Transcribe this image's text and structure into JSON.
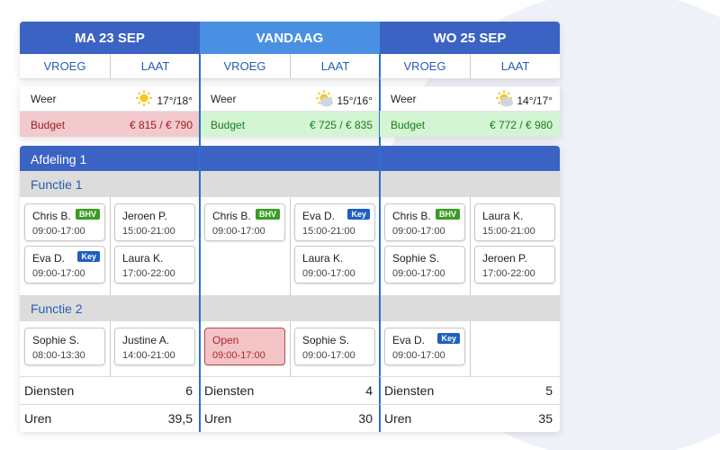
{
  "department": "Afdeling 1",
  "functions": [
    "Functie 1",
    "Functie 2"
  ],
  "weather_label": "Weer",
  "budget_label": "Budget",
  "services_label": "Diensten",
  "hours_label": "Uren",
  "days": [
    {
      "title": "MA 23 SEP",
      "today": false,
      "weather_icon": "sun",
      "temperature": "17°/18°",
      "budget": "€ 815 / € 790",
      "budget_status": "over",
      "services": 6,
      "hours": "39,5",
      "shifts": [
        {
          "label": "VROEG",
          "functions": [
            [
              {
                "name": "Chris B.",
                "time": "09:00-17:00",
                "badge": "BHV"
              },
              {
                "name": "Eva D.",
                "time": "09:00-17:00",
                "badge": "Key"
              }
            ],
            [
              {
                "name": "Sophie S.",
                "time": "08:00-13:30"
              }
            ]
          ]
        },
        {
          "label": "LAAT",
          "functions": [
            [
              {
                "name": "Jeroen P.",
                "time": "15:00-21:00"
              },
              {
                "name": "Laura K.",
                "time": "17:00-22:00"
              }
            ],
            [
              {
                "name": "Justine A.",
                "time": "14:00-21:00"
              }
            ]
          ]
        }
      ]
    },
    {
      "title": "VANDAAG",
      "today": true,
      "weather_icon": "partly-cloudy",
      "temperature": "15°/16°",
      "budget": "€ 725 / € 835",
      "budget_status": "under",
      "services": 4,
      "hours": "30",
      "shifts": [
        {
          "label": "VROEG",
          "functions": [
            [
              {
                "name": "Chris B.",
                "time": "09:00-17:00",
                "badge": "BHV"
              }
            ],
            [
              {
                "name": "Open",
                "time": "09:00-17:00",
                "open": true
              }
            ]
          ]
        },
        {
          "label": "LAAT",
          "functions": [
            [
              {
                "name": "Eva D.",
                "time": "15:00-21:00",
                "badge": "Key"
              },
              {
                "name": "Laura K.",
                "time": "09:00-17:00"
              }
            ],
            [
              {
                "name": "Sophie S.",
                "time": "09:00-17:00"
              }
            ]
          ]
        }
      ]
    },
    {
      "title": "WO 25 SEP",
      "today": false,
      "weather_icon": "partly-cloudy",
      "temperature": "14°/17°",
      "budget": "€ 772 / € 980",
      "budget_status": "under",
      "services": 5,
      "hours": "35",
      "shifts": [
        {
          "label": "VROEG",
          "functions": [
            [
              {
                "name": "Chris B.",
                "time": "09:00-17:00",
                "badge": "BHV"
              },
              {
                "name": "Sophie S.",
                "time": "09:00-17:00"
              }
            ],
            [
              {
                "name": "Eva D.",
                "time": "09:00-17:00",
                "badge": "Key"
              }
            ]
          ]
        },
        {
          "label": "LAAT",
          "functions": [
            [
              {
                "name": "Laura K.",
                "time": "15:00-21:00"
              },
              {
                "name": "Jeroen P.",
                "time": "17:00-22:00"
              }
            ],
            []
          ]
        }
      ]
    }
  ]
}
